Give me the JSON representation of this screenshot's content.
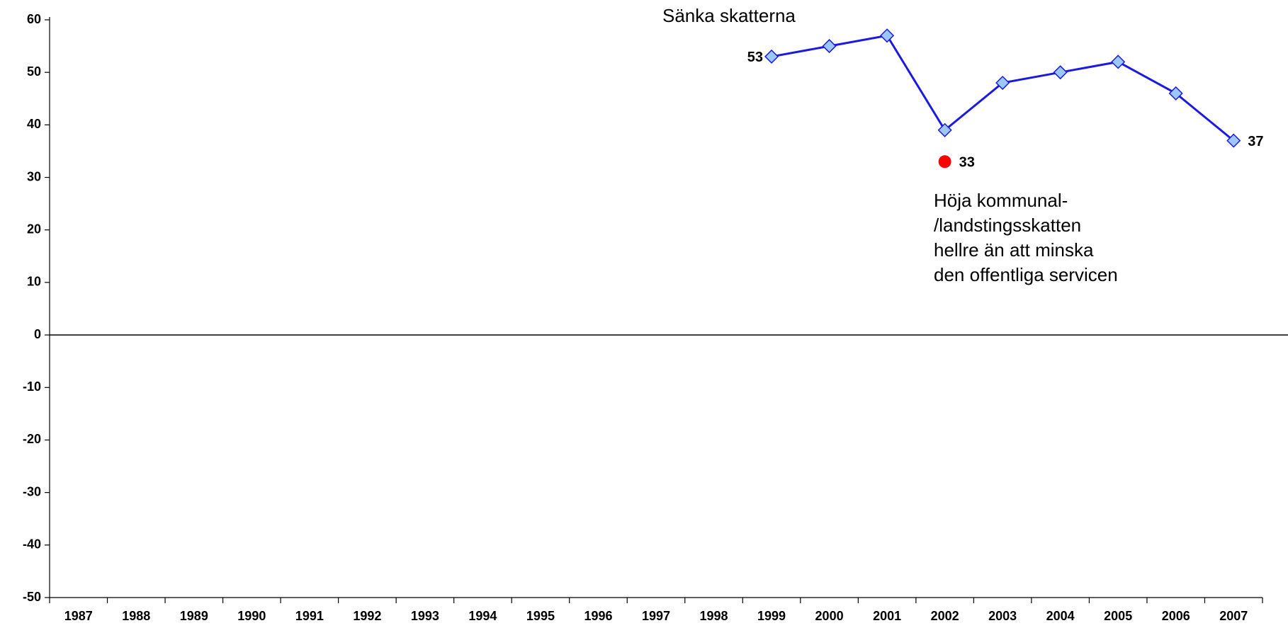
{
  "chart_data": {
    "type": "line",
    "categories": [
      "1987",
      "1988",
      "1989",
      "1990",
      "1991",
      "1992",
      "1993",
      "1994",
      "1995",
      "1996",
      "1997",
      "1998",
      "1999",
      "2000",
      "2001",
      "2002",
      "2003",
      "2004",
      "2005",
      "2006",
      "2007"
    ],
    "series": [
      {
        "name": "Sänka skatterna",
        "color": "#1a1ae0",
        "marker": "diamond",
        "marker_color": "#9cc8ff",
        "data_labels": "ends",
        "values": [
          null,
          null,
          null,
          null,
          null,
          null,
          null,
          null,
          null,
          null,
          null,
          null,
          53,
          55,
          57,
          39,
          48,
          50,
          52,
          46,
          37
        ]
      },
      {
        "name": "Höja kommunal-\n/landstingsskatten\nhellre än att minska\nden offentliga servicen",
        "color": "#ff0000",
        "marker": "circle",
        "data_labels": "ends",
        "values": [
          null,
          null,
          null,
          null,
          null,
          null,
          null,
          null,
          null,
          null,
          null,
          null,
          null,
          null,
          null,
          33,
          null,
          null,
          null,
          null,
          null
        ]
      }
    ],
    "ylim": [
      -50,
      60
    ],
    "yticks": [
      -50,
      -40,
      -30,
      -20,
      -10,
      0,
      10,
      20,
      30,
      40,
      50,
      60
    ],
    "grid": false
  }
}
